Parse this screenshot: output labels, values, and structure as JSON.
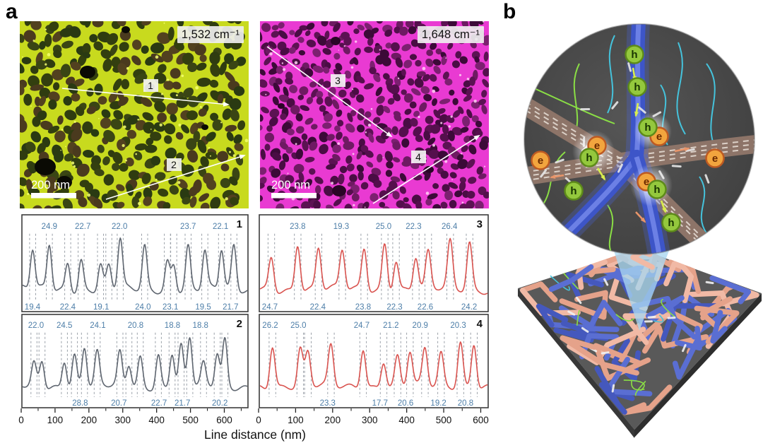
{
  "panels": {
    "a": {
      "label": "a"
    },
    "b": {
      "label": "b"
    }
  },
  "afm_images": [
    {
      "id": "nanoIR-1532",
      "wavenumber_label": "1,532 cm⁻¹",
      "scale_bar": "200 nm",
      "line_labels": [
        "1",
        "2"
      ],
      "palette": {
        "bg": "#c8da1e",
        "bright": "#f4ff72",
        "spot": "#0a0a04",
        "cells": [
          "#3a4514",
          "#2f3c10",
          "#4a3a1e",
          "#333f0f",
          "#52411f",
          "#2a3a12"
        ],
        "cell_size": 16,
        "rmin": 5,
        "rvar": 5
      }
    },
    {
      "id": "nanoIR-1648",
      "wavenumber_label": "1,648 cm⁻¹",
      "scale_bar": "200 nm",
      "line_labels": [
        "3",
        "4"
      ],
      "palette": {
        "bg": "#e93ad2",
        "bright": "#ffd2f5",
        "spot": "#2a0526",
        "cells": [
          "#5c1253",
          "#4a0d44",
          "#6e1a62",
          "#3c0a38",
          "#7c2070",
          "#550f4d"
        ],
        "cell_size": 13.5,
        "rmin": 4,
        "rvar": 4
      }
    }
  ],
  "chart_style": {
    "annotation_color": "#4d7ea8",
    "dash_color": "#9aa0a8",
    "gray_line": "#5f6670",
    "red_line": "#d9534f",
    "border": "#3c3c3c"
  },
  "axis": {
    "title": "Line distance (nm)",
    "ticks": [
      0,
      100,
      200,
      300,
      400,
      500,
      600
    ]
  },
  "chart_data": [
    {
      "id": 1,
      "type": "line",
      "corner_label": "1",
      "line_color": "#5f6670",
      "xlabel": "Line distance (nm)",
      "x_range": [
        0,
        672
      ],
      "x_ticks": [
        0,
        100,
        200,
        300,
        400,
        500,
        600
      ],
      "peaks_nm": [
        30,
        80,
        135,
        175,
        233,
        258,
        292,
        365,
        433,
        452,
        495,
        545,
        595,
        632
      ],
      "peak_heights": [
        0.72,
        0.82,
        0.5,
        0.55,
        0.45,
        0.42,
        0.9,
        0.78,
        0.52,
        0.48,
        0.78,
        0.68,
        0.72,
        0.78
      ],
      "spacing_labels_top": [
        {
          "value": "24.9",
          "x": 80
        },
        {
          "value": "22.7",
          "x": 180
        },
        {
          "value": "22.0",
          "x": 290
        },
        {
          "value": "23.7",
          "x": 495
        },
        {
          "value": "22.1",
          "x": 592
        }
      ],
      "spacing_labels_bottom": [
        {
          "value": "19.4",
          "x": 22
        },
        {
          "value": "22.4",
          "x": 135
        },
        {
          "value": "19.1",
          "x": 235
        },
        {
          "value": "24.0",
          "x": 360
        },
        {
          "value": "23.1",
          "x": 442
        },
        {
          "value": "19.5",
          "x": 540
        },
        {
          "value": "21.7",
          "x": 622
        }
      ]
    },
    {
      "id": 2,
      "type": "line",
      "corner_label": "2",
      "line_color": "#5f6670",
      "xlabel": "Line distance (nm)",
      "x_range": [
        0,
        672
      ],
      "x_ticks": [
        0,
        100,
        200,
        300,
        400,
        500,
        600
      ],
      "peaks_nm": [
        34,
        58,
        125,
        155,
        185,
        223,
        291,
        318,
        352,
        406,
        447,
        474,
        500,
        541,
        582,
        605
      ],
      "peak_heights": [
        0.42,
        0.5,
        0.52,
        0.6,
        0.75,
        0.62,
        0.62,
        0.42,
        0.55,
        0.6,
        0.65,
        0.75,
        0.92,
        0.4,
        0.62,
        0.88
      ],
      "spacing_labels_top": [
        {
          "value": "22.0",
          "x": 40
        },
        {
          "value": "24.5",
          "x": 125
        },
        {
          "value": "24.1",
          "x": 225
        },
        {
          "value": "20.8",
          "x": 338
        },
        {
          "value": "18.8",
          "x": 448
        },
        {
          "value": "18.8",
          "x": 532
        }
      ],
      "spacing_labels_bottom": [
        {
          "value": "28.8",
          "x": 172
        },
        {
          "value": "20.7",
          "x": 288
        },
        {
          "value": "22.7",
          "x": 408
        },
        {
          "value": "21.7",
          "x": 478
        },
        {
          "value": "20.2",
          "x": 590
        }
      ]
    },
    {
      "id": 3,
      "type": "line",
      "corner_label": "3",
      "line_color": "#d9534f",
      "xlabel": "Line distance (nm)",
      "x_range": [
        0,
        622
      ],
      "x_ticks": [
        0,
        100,
        200,
        300,
        400,
        500,
        600
      ],
      "peaks_nm": [
        31,
        103,
        160,
        225,
        285,
        341,
        372,
        426,
        460,
        520,
        573
      ],
      "peak_heights": [
        0.6,
        0.85,
        0.75,
        0.7,
        0.75,
        0.85,
        0.55,
        0.6,
        0.65,
        0.85,
        0.85
      ],
      "spacing_labels_top": [
        {
          "value": "23.8",
          "x": 103
        },
        {
          "value": "19.3",
          "x": 222
        },
        {
          "value": "25.0",
          "x": 338
        },
        {
          "value": "22.3",
          "x": 420
        },
        {
          "value": "26.4",
          "x": 518
        }
      ],
      "spacing_labels_bottom": [
        {
          "value": "24.7",
          "x": 18
        },
        {
          "value": "22.4",
          "x": 158
        },
        {
          "value": "23.8",
          "x": 282
        },
        {
          "value": "22.3",
          "x": 368
        },
        {
          "value": "22.6",
          "x": 452
        },
        {
          "value": "24.2",
          "x": 572
        }
      ]
    },
    {
      "id": 4,
      "type": "line",
      "corner_label": "4",
      "line_color": "#d9534f",
      "xlabel": "Line distance (nm)",
      "x_range": [
        0,
        622
      ],
      "x_ticks": [
        0,
        100,
        200,
        300,
        400,
        500,
        600
      ],
      "peaks_nm": [
        34,
        110,
        131,
        194,
        282,
        338,
        376,
        410,
        451,
        495,
        548,
        585
      ],
      "peak_heights": [
        0.8,
        0.7,
        0.62,
        0.75,
        0.75,
        0.5,
        0.55,
        0.65,
        0.7,
        0.6,
        0.85,
        0.85
      ],
      "spacing_labels_top": [
        {
          "value": "26.2",
          "x": 28
        },
        {
          "value": "25.0",
          "x": 105
        },
        {
          "value": "24.7",
          "x": 278
        },
        {
          "value": "21.2",
          "x": 358
        },
        {
          "value": "20.9",
          "x": 438
        },
        {
          "value": "20.3",
          "x": 542
        }
      ],
      "spacing_labels_bottom": [
        {
          "value": "23.3",
          "x": 185
        },
        {
          "value": "17.7",
          "x": 328
        },
        {
          "value": "20.6",
          "x": 398
        },
        {
          "value": "19.2",
          "x": 488
        },
        {
          "value": "20.8",
          "x": 562
        }
      ]
    }
  ],
  "illustration": {
    "electron_label": "e",
    "hole_label": "h",
    "colors": {
      "bg1": "#565656",
      "bg2": "#3a3a3a",
      "e_band": "#8d7468",
      "band_dash": "#e9e1d8",
      "h_band": "#3d55c8",
      "h_band_core": "#7488ea",
      "h_band_glow": "#4a63d8",
      "electron_fill": "#f2a53e",
      "electron_stroke": "#bd5a22",
      "electron_text": "#6b2a00",
      "hole_fill": "#94c83d",
      "hole_stroke": "#5d8a1a",
      "hole_text": "#173300",
      "squiggle_cyan": "#45c3dc",
      "squiggle_green": "#8ade45",
      "dash_white": "#e8e8e8",
      "cone": "rgba(168,214,240,0.78)",
      "slab_top": "#595959",
      "slab_side": "#383838",
      "rod_blue": "#5a6ed2",
      "rod_blue2": "#4558bd",
      "rod_pink": "#f1b9a5",
      "rod_pink2": "#e5a28a",
      "arrow_yellow": "#d9ee4e",
      "arrow_salmon": "#e8956a"
    }
  }
}
